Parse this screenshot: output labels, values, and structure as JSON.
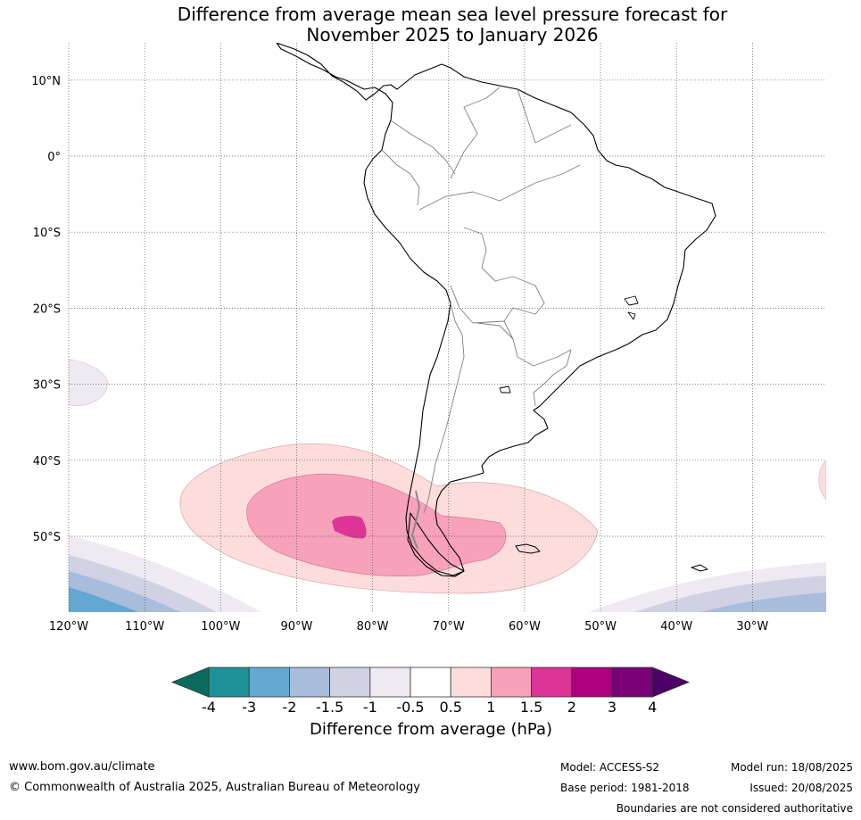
{
  "title_line1": "Difference from average mean sea level pressure forecast for",
  "title_line2": "November 2025 to January 2026",
  "map": {
    "lat_labels": [
      "10°N",
      "0°",
      "10°S",
      "20°S",
      "30°S",
      "40°S",
      "50°S"
    ],
    "lon_labels": [
      "120°W",
      "110°W",
      "100°W",
      "90°W",
      "80°W",
      "70°W",
      "60°W",
      "50°W",
      "40°W",
      "30°W"
    ],
    "lat_values": [
      10,
      0,
      -10,
      -20,
      -30,
      -40,
      -50
    ],
    "lon_values": [
      -120,
      -110,
      -100,
      -90,
      -80,
      -70,
      -60,
      -50,
      -40,
      -30
    ],
    "extent": {
      "lon_min": -120,
      "lon_max": -20,
      "lat_min": -60,
      "lat_max": 15
    },
    "colors": {
      "land_outline": "#000000",
      "borders": "#808080",
      "grid": "#555555"
    }
  },
  "colorbar": {
    "ticks": [
      "-4",
      "-3",
      "-2",
      "-1.5",
      "-1",
      "-0.5",
      "0.5",
      "1",
      "1.5",
      "2",
      "3",
      "4"
    ],
    "colors": [
      "#1e9197",
      "#62a8d0",
      "#a8bcdc",
      "#d1d1e6",
      "#efeaf2",
      "#ffffff",
      "#fddcdc",
      "#f7a1ba",
      "#dd3596",
      "#ad0180",
      "#7a0177"
    ],
    "under_color": "#0b6b5e",
    "over_color": "#4c0068",
    "label": "Difference from average (hPa)"
  },
  "footer": {
    "url": "www.bom.gov.au/climate",
    "copyright": "© Commonwealth of Australia 2025, Australian Bureau of Meteorology",
    "model": "Model: ACCESS-S2",
    "base_period": "Base period: 1981-2018",
    "model_run": "Model run: 18/08/2025",
    "issued": "Issued: 20/08/2025",
    "boundaries_note": "Boundaries are not considered authoritative"
  }
}
